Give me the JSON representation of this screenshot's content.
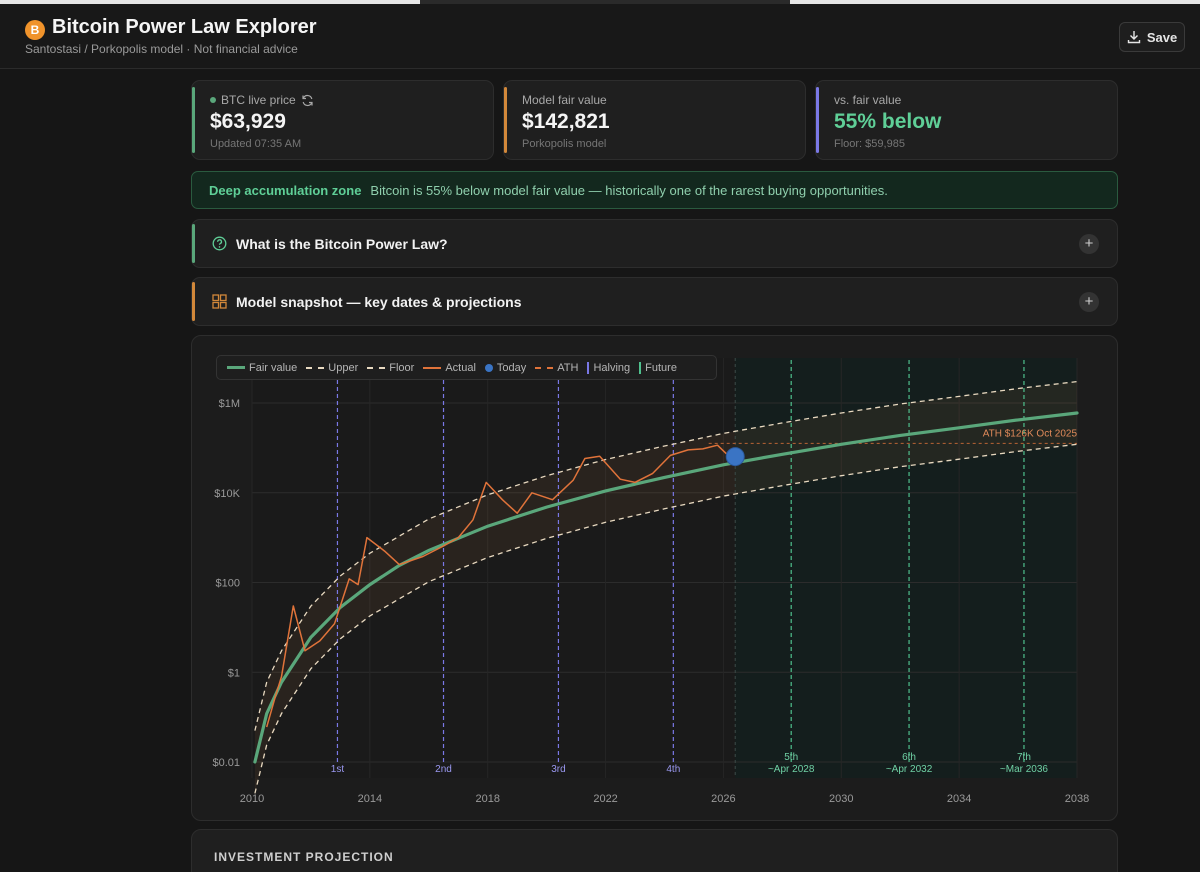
{
  "app": {
    "logo_letter": "B",
    "title": "Bitcoin Power Law Explorer",
    "subtitle": "Santostasi / Porkopolis model  ·  Not financial advice",
    "save_label": "Save"
  },
  "cards": {
    "live": {
      "label": "BTC live price",
      "value": "$63,929",
      "sub": "Updated 07:35 AM"
    },
    "fair": {
      "label": "Model fair value",
      "value": "$142,821",
      "sub": "Porkopolis model"
    },
    "vs": {
      "label": "vs. fair value",
      "value": "55% below",
      "sub": "Floor: $59,985"
    }
  },
  "zone": {
    "title": "Deep accumulation zone",
    "text": "Bitcoin is 55% below model fair value — historically one of the rarest buying opportunities."
  },
  "accordions": {
    "power_law": "What is the Bitcoin Power Law?",
    "snapshot": "Model snapshot — key dates & projections"
  },
  "legend": {
    "fair": "Fair value",
    "upper": "Upper",
    "floor": "Floor",
    "actual": "Actual",
    "today": "Today",
    "ath": "ATH",
    "halving": "Halving",
    "future": "Future"
  },
  "colors": {
    "fair": "#5aa77b",
    "band": "#e8d9c0",
    "actual": "#e0733a",
    "today": "#3a74c4",
    "ath": "#e0733a",
    "halving": "#7a78e6",
    "future": "#4fc08d",
    "accent_live": "#5aa77b",
    "accent_fair": "#d2883a",
    "accent_vs": "#7a78e6"
  },
  "projection": {
    "title": "INVESTMENT PROJECTION"
  },
  "chart_data": {
    "type": "line",
    "log_y": true,
    "xlim": [
      2010,
      2038
    ],
    "ylim": [
      0.01,
      10000000
    ],
    "x_ticks": [
      "2010",
      "2014",
      "2018",
      "2022",
      "2026",
      "2030",
      "2034",
      "2038"
    ],
    "y_ticks": [
      {
        "value": 0.01,
        "label": "$0.01"
      },
      {
        "value": 1,
        "label": "$1"
      },
      {
        "value": 100,
        "label": "$100"
      },
      {
        "value": 10000,
        "label": "$10K"
      },
      {
        "value": 1000000,
        "label": "$1M"
      }
    ],
    "series": [
      {
        "name": "Fair value",
        "x": [
          2010.1,
          2010.5,
          2011,
          2012,
          2013,
          2014,
          2015,
          2016,
          2018,
          2020,
          2022,
          2024,
          2026,
          2028,
          2030,
          2032,
          2034,
          2036,
          2038
        ],
        "y": [
          0.01,
          0.12,
          0.6,
          6,
          28,
          90,
          240,
          520,
          1800,
          4800,
          11000,
          22000,
          42000,
          72000,
          120000,
          190000,
          280000,
          420000,
          600000
        ]
      },
      {
        "name": "Upper",
        "x": [
          2010.1,
          2010.5,
          2011,
          2012,
          2013,
          2014,
          2016,
          2018,
          2020,
          2022,
          2024,
          2026,
          2028,
          2030,
          2032,
          2034,
          2036,
          2038
        ],
        "y": [
          0.05,
          0.6,
          3,
          30,
          140,
          450,
          2600,
          9000,
          24000,
          55000,
          110000,
          210000,
          360000,
          600000,
          950000,
          1400000,
          2100000,
          3000000
        ]
      },
      {
        "name": "Floor",
        "x": [
          2010.1,
          2010.5,
          2011,
          2012,
          2013,
          2014,
          2016,
          2018,
          2020,
          2022,
          2024,
          2026,
          2028,
          2030,
          2032,
          2034,
          2036,
          2038
        ],
        "y": [
          0.002,
          0.024,
          0.12,
          1.2,
          5.6,
          18,
          104,
          360,
          960,
          2200,
          4400,
          8400,
          14400,
          24000,
          38000,
          56000,
          84000,
          120000
        ]
      },
      {
        "name": "Actual",
        "x": [
          2010.5,
          2010.8,
          2011.0,
          2011.4,
          2011.8,
          2012.3,
          2012.8,
          2013.3,
          2013.6,
          2013.9,
          2014.5,
          2015.0,
          2015.8,
          2016.5,
          2017.0,
          2017.5,
          2017.95,
          2018.5,
          2019.0,
          2019.5,
          2020.2,
          2020.9,
          2021.3,
          2021.8,
          2022.5,
          2023.0,
          2023.6,
          2024.2,
          2024.8,
          2025.3,
          2025.8,
          2026.2
        ],
        "y": [
          0.06,
          0.3,
          0.8,
          30,
          3,
          5,
          12,
          120,
          90,
          1000,
          500,
          250,
          380,
          650,
          1000,
          2500,
          17000,
          7000,
          3500,
          10000,
          7000,
          19000,
          58000,
          65000,
          20000,
          17000,
          27000,
          68000,
          90000,
          95000,
          115000,
          64000
        ]
      }
    ],
    "today": {
      "x": 2026.4,
      "y": 63929
    },
    "ath": {
      "value": 126000,
      "label": "ATH $126K  Oct 2025"
    },
    "halvings": [
      {
        "x": 2012.9,
        "label": "1st"
      },
      {
        "x": 2016.5,
        "label": "2nd"
      },
      {
        "x": 2020.4,
        "label": "3rd"
      },
      {
        "x": 2024.3,
        "label": "4th"
      }
    ],
    "future_halvings": [
      {
        "x": 2028.3,
        "label": "5th",
        "date": "~Apr 2028"
      },
      {
        "x": 2032.3,
        "label": "6th",
        "date": "~Apr 2032"
      },
      {
        "x": 2036.2,
        "label": "7th",
        "date": "~Mar 2036"
      }
    ],
    "future_start": 2026.4,
    "grid": true,
    "legend_position": "top-left"
  }
}
